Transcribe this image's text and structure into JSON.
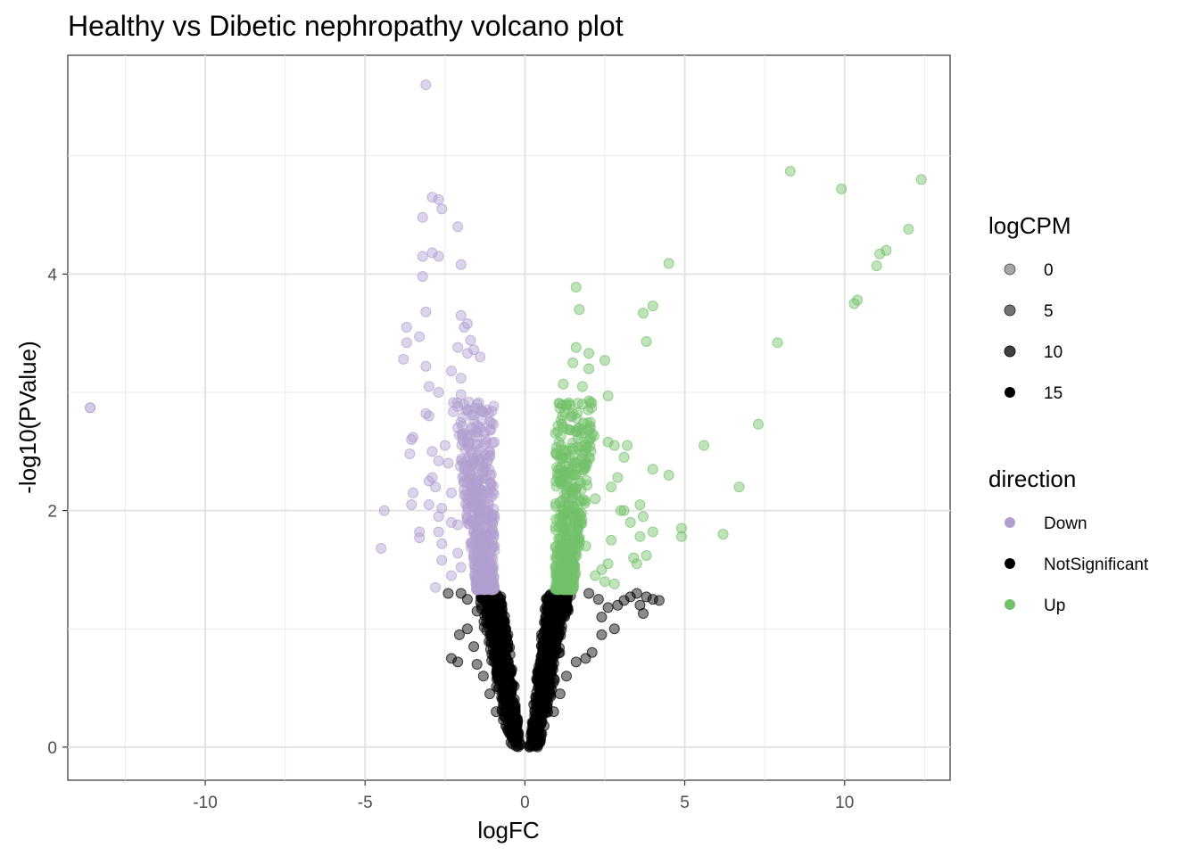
{
  "chart_data": {
    "type": "scatter",
    "title": "Healthy vs Dibetic nephropathy volcano plot",
    "xlabel": "logFC",
    "ylabel": "-log10(PValue)",
    "xlim": [
      -14.3,
      13.3
    ],
    "ylim": [
      -0.28,
      5.85
    ],
    "x_ticks": [
      -10,
      -5,
      0,
      5,
      10
    ],
    "x_tick_labels": [
      "-10",
      "-5",
      "0",
      "5",
      "10"
    ],
    "y_ticks": [
      0,
      2,
      4
    ],
    "y_tick_labels": [
      "0",
      "2",
      "4"
    ],
    "grid": true,
    "legend_position": "right",
    "series": [
      {
        "name": "Down",
        "color": "#b19fd0",
        "points": [
          [
            -3.1,
            5.6
          ],
          [
            -2.9,
            4.65
          ],
          [
            -2.7,
            4.63
          ],
          [
            -2.6,
            4.55
          ],
          [
            -3.2,
            4.48
          ],
          [
            -2.1,
            4.4
          ],
          [
            -2.9,
            4.18
          ],
          [
            -3.2,
            4.15
          ],
          [
            -2.7,
            4.15
          ],
          [
            -2.0,
            4.08
          ],
          [
            -3.2,
            3.98
          ],
          [
            -3.1,
            3.68
          ],
          [
            -2.0,
            3.65
          ],
          [
            -1.8,
            3.58
          ],
          [
            -1.9,
            3.55
          ],
          [
            -3.7,
            3.55
          ],
          [
            -3.3,
            3.47
          ],
          [
            -1.7,
            3.44
          ],
          [
            -3.7,
            3.42
          ],
          [
            -2.1,
            3.38
          ],
          [
            -1.6,
            3.36
          ],
          [
            -1.8,
            3.33
          ],
          [
            -3.8,
            3.28
          ],
          [
            -1.4,
            3.3
          ],
          [
            -3.1,
            3.22
          ],
          [
            -2.3,
            3.18
          ],
          [
            -2.0,
            3.12
          ],
          [
            -3.0,
            3.05
          ],
          [
            -2.7,
            3.0
          ],
          [
            -2.0,
            2.98
          ],
          [
            -3.1,
            2.82
          ],
          [
            -2.1,
            2.88
          ],
          [
            -3.0,
            2.8
          ],
          [
            -1.5,
            2.9
          ],
          [
            -1.2,
            2.85
          ],
          [
            -2.1,
            2.7
          ],
          [
            -1.8,
            2.62
          ],
          [
            -3.5,
            2.62
          ],
          [
            -3.55,
            2.6
          ],
          [
            -2.5,
            2.55
          ],
          [
            -1.7,
            2.5
          ],
          [
            -2.9,
            2.5
          ],
          [
            -3.6,
            2.48
          ],
          [
            -2.7,
            2.42
          ],
          [
            -2.4,
            2.4
          ],
          [
            -1.9,
            2.35
          ],
          [
            -2.9,
            2.28
          ],
          [
            -3.0,
            2.25
          ],
          [
            -2.8,
            2.2
          ],
          [
            -3.5,
            2.15
          ],
          [
            -2.3,
            2.15
          ],
          [
            -1.8,
            2.1
          ],
          [
            -3.0,
            2.05
          ],
          [
            -3.55,
            2.05
          ],
          [
            -2.6,
            2.02
          ],
          [
            -4.4,
            2.0
          ],
          [
            -2.7,
            1.95
          ],
          [
            -2.3,
            1.9
          ],
          [
            -2.1,
            1.88
          ],
          [
            -3.3,
            1.82
          ],
          [
            -2.7,
            1.82
          ],
          [
            -3.3,
            1.77
          ],
          [
            -2.6,
            1.72
          ],
          [
            -4.5,
            1.68
          ],
          [
            -2.1,
            1.64
          ],
          [
            -2.6,
            1.58
          ],
          [
            -2.0,
            1.52
          ],
          [
            -2.3,
            1.45
          ],
          [
            -2.8,
            1.35
          ],
          [
            -1.6,
            1.6
          ],
          [
            -1.4,
            1.8
          ],
          [
            -1.2,
            2.0
          ],
          [
            -1.0,
            1.5
          ],
          [
            -1.1,
            2.3
          ]
        ]
      },
      {
        "name": "NotSignificant",
        "color": "#000000",
        "points": [
          [
            -2.1,
            0.72
          ],
          [
            -2.3,
            0.75
          ],
          [
            -2.05,
            0.95
          ],
          [
            -1.8,
            1.0
          ],
          [
            -1.6,
            0.85
          ],
          [
            -1.5,
            0.7
          ],
          [
            -2.4,
            1.3
          ],
          [
            -2.0,
            1.3
          ],
          [
            -1.8,
            1.25
          ],
          [
            -1.5,
            1.15
          ],
          [
            -1.3,
            0.6
          ],
          [
            -1.1,
            0.45
          ],
          [
            -0.9,
            0.3
          ],
          [
            -0.6,
            0.18
          ],
          [
            -0.3,
            0.06
          ],
          [
            0.3,
            0.06
          ],
          [
            0.6,
            0.18
          ],
          [
            0.9,
            0.3
          ],
          [
            1.1,
            0.45
          ],
          [
            1.3,
            0.6
          ],
          [
            1.6,
            0.72
          ],
          [
            1.9,
            0.75
          ],
          [
            2.1,
            0.8
          ],
          [
            2.4,
            0.95
          ],
          [
            2.8,
            1.0
          ],
          [
            3.5,
            1.3
          ],
          [
            3.6,
            1.2
          ],
          [
            3.7,
            1.13
          ],
          [
            4.2,
            1.24
          ],
          [
            3.1,
            1.24
          ],
          [
            2.9,
            1.2
          ],
          [
            2.6,
            1.18
          ],
          [
            2.4,
            1.1
          ],
          [
            3.3,
            1.27
          ],
          [
            3.8,
            1.27
          ],
          [
            4.0,
            1.25
          ],
          [
            2.0,
            1.3
          ],
          [
            2.3,
            1.25
          ],
          [
            0.15,
            0.02
          ],
          [
            -0.15,
            0.02
          ]
        ]
      },
      {
        "name": "Up",
        "color": "#73c26b",
        "points": [
          [
            12.4,
            4.8
          ],
          [
            8.3,
            4.87
          ],
          [
            9.9,
            4.72
          ],
          [
            12.0,
            4.38
          ],
          [
            11.3,
            4.2
          ],
          [
            11.1,
            4.17
          ],
          [
            11.0,
            4.07
          ],
          [
            10.4,
            3.78
          ],
          [
            10.3,
            3.75
          ],
          [
            7.9,
            3.42
          ],
          [
            4.5,
            4.09
          ],
          [
            4.0,
            3.73
          ],
          [
            3.7,
            3.67
          ],
          [
            3.8,
            3.43
          ],
          [
            1.6,
            3.89
          ],
          [
            1.7,
            3.7
          ],
          [
            1.6,
            3.38
          ],
          [
            1.5,
            3.25
          ],
          [
            2.0,
            3.33
          ],
          [
            2.0,
            3.2
          ],
          [
            2.5,
            3.27
          ],
          [
            1.2,
            3.07
          ],
          [
            1.8,
            3.05
          ],
          [
            2.6,
            2.97
          ],
          [
            1.3,
            2.9
          ],
          [
            1.8,
            2.9
          ],
          [
            7.3,
            2.73
          ],
          [
            5.6,
            2.55
          ],
          [
            6.7,
            2.2
          ],
          [
            4.5,
            2.3
          ],
          [
            4.0,
            2.35
          ],
          [
            3.1,
            2.45
          ],
          [
            2.8,
            2.55
          ],
          [
            3.2,
            2.55
          ],
          [
            2.6,
            2.58
          ],
          [
            2.9,
            2.28
          ],
          [
            2.7,
            2.2
          ],
          [
            3.0,
            2.0
          ],
          [
            3.1,
            2.0
          ],
          [
            3.6,
            2.05
          ],
          [
            3.3,
            1.9
          ],
          [
            3.7,
            1.95
          ],
          [
            4.9,
            1.85
          ],
          [
            4.0,
            1.82
          ],
          [
            4.9,
            1.78
          ],
          [
            6.2,
            1.8
          ],
          [
            3.6,
            1.78
          ],
          [
            3.4,
            1.6
          ],
          [
            3.5,
            1.55
          ],
          [
            3.8,
            1.62
          ],
          [
            2.6,
            1.55
          ],
          [
            2.4,
            1.5
          ],
          [
            2.2,
            1.45
          ],
          [
            2.8,
            1.38
          ],
          [
            2.5,
            1.4
          ],
          [
            2.7,
            1.75
          ],
          [
            1.2,
            2.0
          ],
          [
            1.3,
            2.5
          ],
          [
            1.0,
            1.6
          ],
          [
            1.5,
            2.2
          ],
          [
            1.9,
            1.7
          ],
          [
            2.2,
            2.1
          ],
          [
            2.1,
            2.65
          ],
          [
            1.7,
            2.7
          ]
        ]
      }
    ],
    "legend": {
      "size_title": "logCPM",
      "size_entries": [
        "0",
        "5",
        "10",
        "15"
      ],
      "color_title": "direction",
      "color_entries": [
        "Down",
        "NotSignificant",
        "Up"
      ]
    }
  }
}
